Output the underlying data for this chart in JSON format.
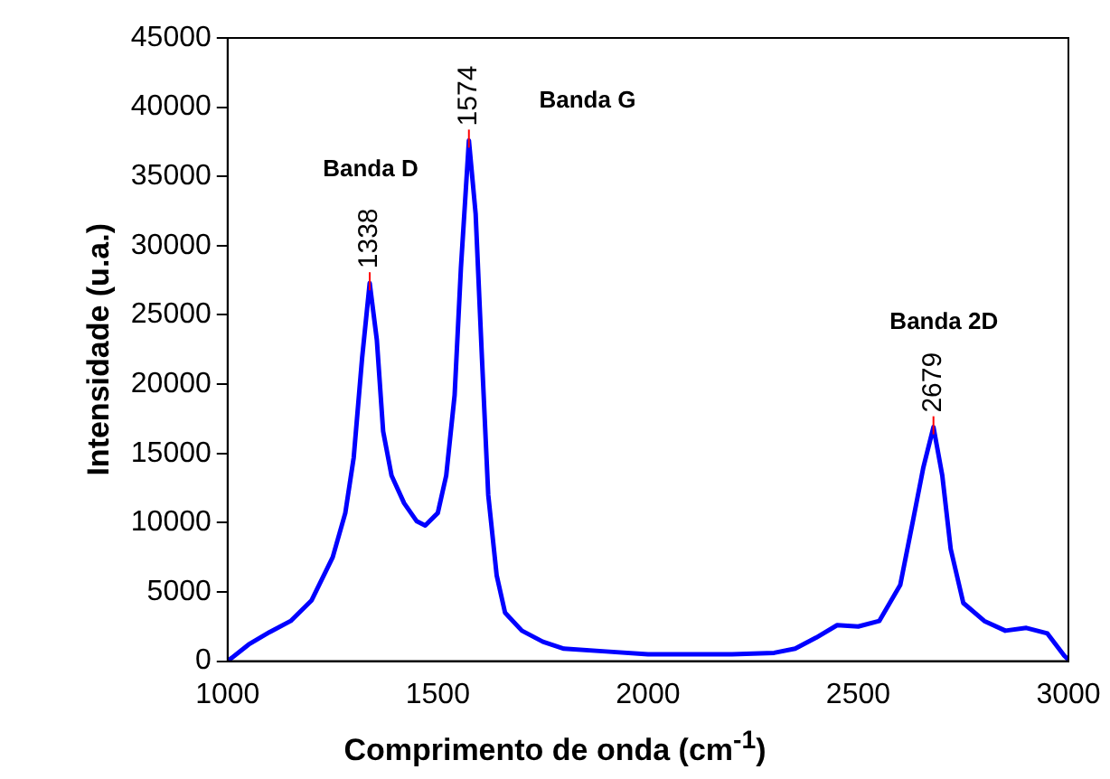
{
  "chart_data": {
    "type": "line",
    "xlabel": "Comprimento de onda (cm$^{-1}$)",
    "ylabel": "Intensidade (u.a.)",
    "xlim": [
      1000,
      3000
    ],
    "xticks": [
      1000,
      1500,
      2000,
      2500,
      3000
    ],
    "ylim": [
      0,
      45000
    ],
    "yticks": [
      0,
      5000,
      10000,
      15000,
      20000,
      25000,
      30000,
      35000,
      40000,
      45000
    ],
    "grid": false,
    "legend": false,
    "marker": "none",
    "line_style": "solid",
    "series": [
      {
        "color": "#0000ff",
        "x": [
          1000,
          1050,
          1100,
          1150,
          1200,
          1250,
          1280,
          1300,
          1320,
          1338,
          1355,
          1370,
          1390,
          1420,
          1450,
          1470,
          1500,
          1520,
          1540,
          1555,
          1574,
          1590,
          1605,
          1620,
          1640,
          1660,
          1700,
          1750,
          1800,
          1900,
          2000,
          2100,
          2200,
          2300,
          2350,
          2400,
          2450,
          2500,
          2550,
          2600,
          2630,
          2655,
          2679,
          2700,
          2720,
          2750,
          2800,
          2850,
          2900,
          2950,
          2990,
          3000
        ],
        "values": [
          0,
          1200,
          2100,
          2900,
          4400,
          7500,
          10700,
          14700,
          21900,
          27300,
          23200,
          16600,
          13400,
          11400,
          10100,
          9800,
          10700,
          13400,
          19200,
          28400,
          37600,
          32300,
          21900,
          12000,
          6200,
          3500,
          2200,
          1400,
          900,
          700,
          500,
          500,
          500,
          600,
          900,
          1700,
          2600,
          2500,
          2900,
          5500,
          10100,
          14000,
          16900,
          13400,
          8100,
          4200,
          2900,
          2200,
          2400,
          2000,
          400,
          100
        ]
      }
    ],
    "annotations": [
      "Banda D",
      "Banda G",
      "Banda 2D",
      {
        "text": "1338",
        "x": 1338,
        "y": 27300
      },
      {
        "text": "1574",
        "x": 1574,
        "y": 37600
      },
      {
        "text": "2679",
        "x": 2679,
        "y": 16900
      }
    ]
  }
}
